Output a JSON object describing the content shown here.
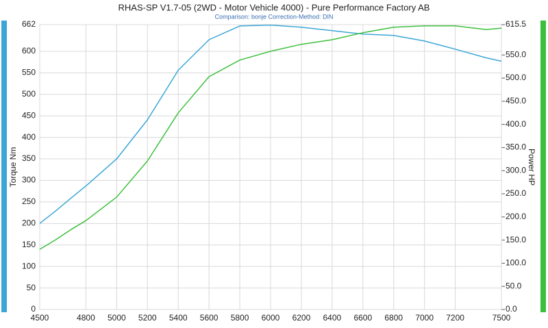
{
  "chart_data": {
    "type": "line",
    "title": "RHAS-SP V1.7-05   (2WD - Motor Vehicle 4000) - Pure Performance Factory AB",
    "subtitle": "Comparison: bonje    Correction-Method: DIN",
    "ylabel": "Torque Nm",
    "y2label": "Power HP",
    "x": [
      4500,
      4600,
      4700,
      4800,
      5000,
      5200,
      5400,
      5600,
      5800,
      6000,
      6200,
      6400,
      6600,
      6800,
      7000,
      7200,
      7400,
      7500
    ],
    "series": [
      {
        "color": "#3aa6d6",
        "values": [
          200,
          228,
          258,
          287,
          350,
          441,
          556,
          627,
          659,
          661,
          656,
          648,
          640,
          637,
          624,
          605,
          585,
          577
        ]
      },
      {
        "color": "#3cbf3c",
        "axis": "y2",
        "values": [
          130,
          150,
          172,
          192,
          243,
          321,
          425,
          503,
          539,
          558,
          573,
          583,
          598,
          610,
          613,
          613,
          605,
          608
        ]
      }
    ],
    "xlim": [
      4500,
      7500
    ],
    "xticks": [
      4500,
      4800,
      5000,
      5200,
      5400,
      5600,
      5800,
      6000,
      6200,
      6400,
      6600,
      6800,
      7000,
      7200,
      7500
    ],
    "ylim": [
      0,
      662
    ],
    "yticks": [
      0,
      50,
      100,
      150,
      200,
      250,
      300,
      350,
      400,
      450,
      500,
      550,
      600,
      662
    ],
    "y2lim": [
      0,
      615.5
    ],
    "y2ticks": [
      {
        "value": 0,
        "label": "0.0"
      },
      {
        "value": 50,
        "label": "50.0"
      },
      {
        "value": 100,
        "label": "100.0"
      },
      {
        "value": 150,
        "label": "150.0"
      },
      {
        "value": 200,
        "label": "200.0"
      },
      {
        "value": 250,
        "label": "250.0"
      },
      {
        "value": 300,
        "label": "300.0"
      },
      {
        "value": 350,
        "label": "350.0"
      },
      {
        "value": 400,
        "label": "400.0"
      },
      {
        "value": 450,
        "label": "450.0"
      },
      {
        "value": 500,
        "label": "500.0"
      },
      {
        "value": 550,
        "label": "550.0"
      },
      615.5
    ],
    "grid": true
  }
}
